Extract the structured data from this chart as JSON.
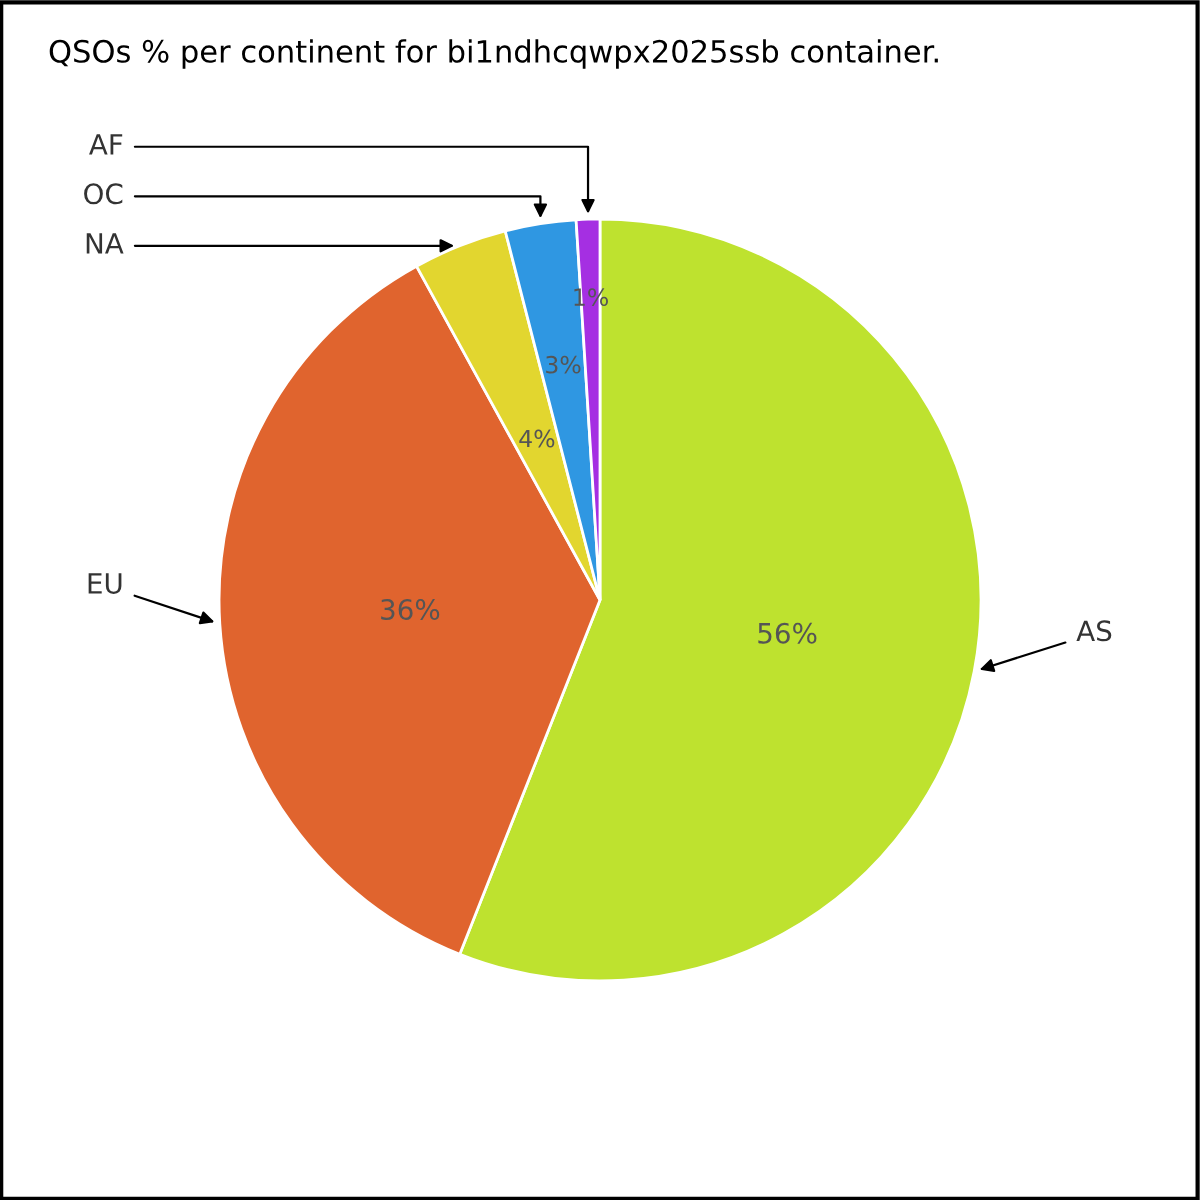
{
  "chart_data": {
    "type": "pie",
    "title": "QSOs % per continent for bi1ndhcqwpx2025ssb container.",
    "categories": [
      "AS",
      "EU",
      "NA",
      "OC",
      "AF"
    ],
    "values": [
      56,
      36,
      4,
      3,
      1
    ],
    "value_labels": [
      "56%",
      "36%",
      "4%",
      "3%",
      "1%"
    ],
    "colors": [
      "#bee22f",
      "#e0642e",
      "#e2d62f",
      "#2f97e2",
      "#a52fe2"
    ],
    "legend": false
  }
}
